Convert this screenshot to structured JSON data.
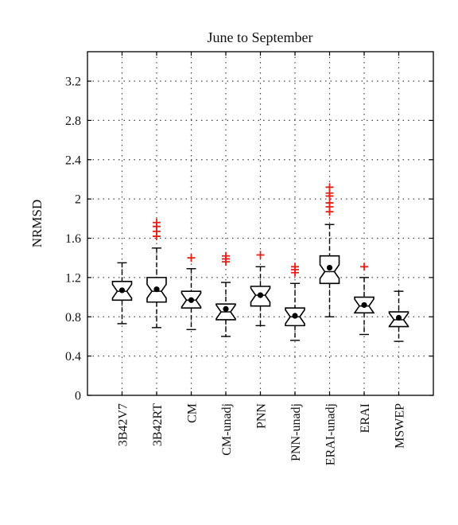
{
  "chart_data": {
    "type": "box",
    "title": "June to September",
    "ylabel": "NRMSD",
    "xlabel": "",
    "ylim": [
      0,
      3.5
    ],
    "yticks": [
      0,
      0.4,
      0.8,
      1.2,
      1.6,
      2,
      2.4,
      2.8,
      3.2
    ],
    "ytick_labels": [
      "0",
      "0.4",
      "0.8",
      "1.2",
      "1.6",
      "2",
      "2.4",
      "2.8",
      "3.2"
    ],
    "grid": true,
    "notched": true,
    "colors": {
      "box": "#000000",
      "outlier": "#e32119",
      "grid": "#444444"
    },
    "categories": [
      "3B42V7",
      "3B42RT",
      "CM",
      "CM-unadj",
      "PNN",
      "PNN-unadj",
      "ERAI-unadj",
      "ERAI",
      "MSWEP"
    ],
    "boxes": [
      {
        "name": "3B42V7",
        "whisker_low": 0.73,
        "q1": 0.97,
        "median": 1.06,
        "q3": 1.16,
        "whisker_high": 1.35,
        "mean": 1.07,
        "outliers": []
      },
      {
        "name": "3B42RT",
        "whisker_low": 0.69,
        "q1": 0.95,
        "median": 1.06,
        "q3": 1.2,
        "whisker_high": 1.5,
        "mean": 1.08,
        "outliers": [
          1.62,
          1.67,
          1.72,
          1.76
        ]
      },
      {
        "name": "CM",
        "whisker_low": 0.67,
        "q1": 0.89,
        "median": 0.97,
        "q3": 1.06,
        "whisker_high": 1.29,
        "mean": 0.97,
        "outliers": [
          1.4
        ]
      },
      {
        "name": "CM-unadj",
        "whisker_low": 0.6,
        "q1": 0.77,
        "median": 0.85,
        "q3": 0.93,
        "whisker_high": 1.15,
        "mean": 0.88,
        "outliers": [
          1.36,
          1.39,
          1.42
        ]
      },
      {
        "name": "PNN",
        "whisker_low": 0.71,
        "q1": 0.91,
        "median": 1.02,
        "q3": 1.11,
        "whisker_high": 1.31,
        "mean": 1.02,
        "outliers": [
          1.43
        ]
      },
      {
        "name": "PNN-unadj",
        "whisker_low": 0.56,
        "q1": 0.71,
        "median": 0.8,
        "q3": 0.89,
        "whisker_high": 1.14,
        "mean": 0.81,
        "outliers": [
          1.25,
          1.28,
          1.31
        ]
      },
      {
        "name": "ERAI-unadj",
        "whisker_low": 0.8,
        "q1": 1.14,
        "median": 1.26,
        "q3": 1.42,
        "whisker_high": 1.74,
        "mean": 1.3,
        "outliers": [
          1.87,
          1.92,
          1.96,
          2.03,
          2.06,
          2.12
        ]
      },
      {
        "name": "ERAI",
        "whisker_low": 0.62,
        "q1": 0.84,
        "median": 0.91,
        "q3": 1.0,
        "whisker_high": 1.2,
        "mean": 0.92,
        "outliers": [
          1.31
        ]
      },
      {
        "name": "MSWEP",
        "whisker_low": 0.55,
        "q1": 0.7,
        "median": 0.77,
        "q3": 0.85,
        "whisker_high": 1.06,
        "mean": 0.79,
        "outliers": []
      }
    ]
  }
}
